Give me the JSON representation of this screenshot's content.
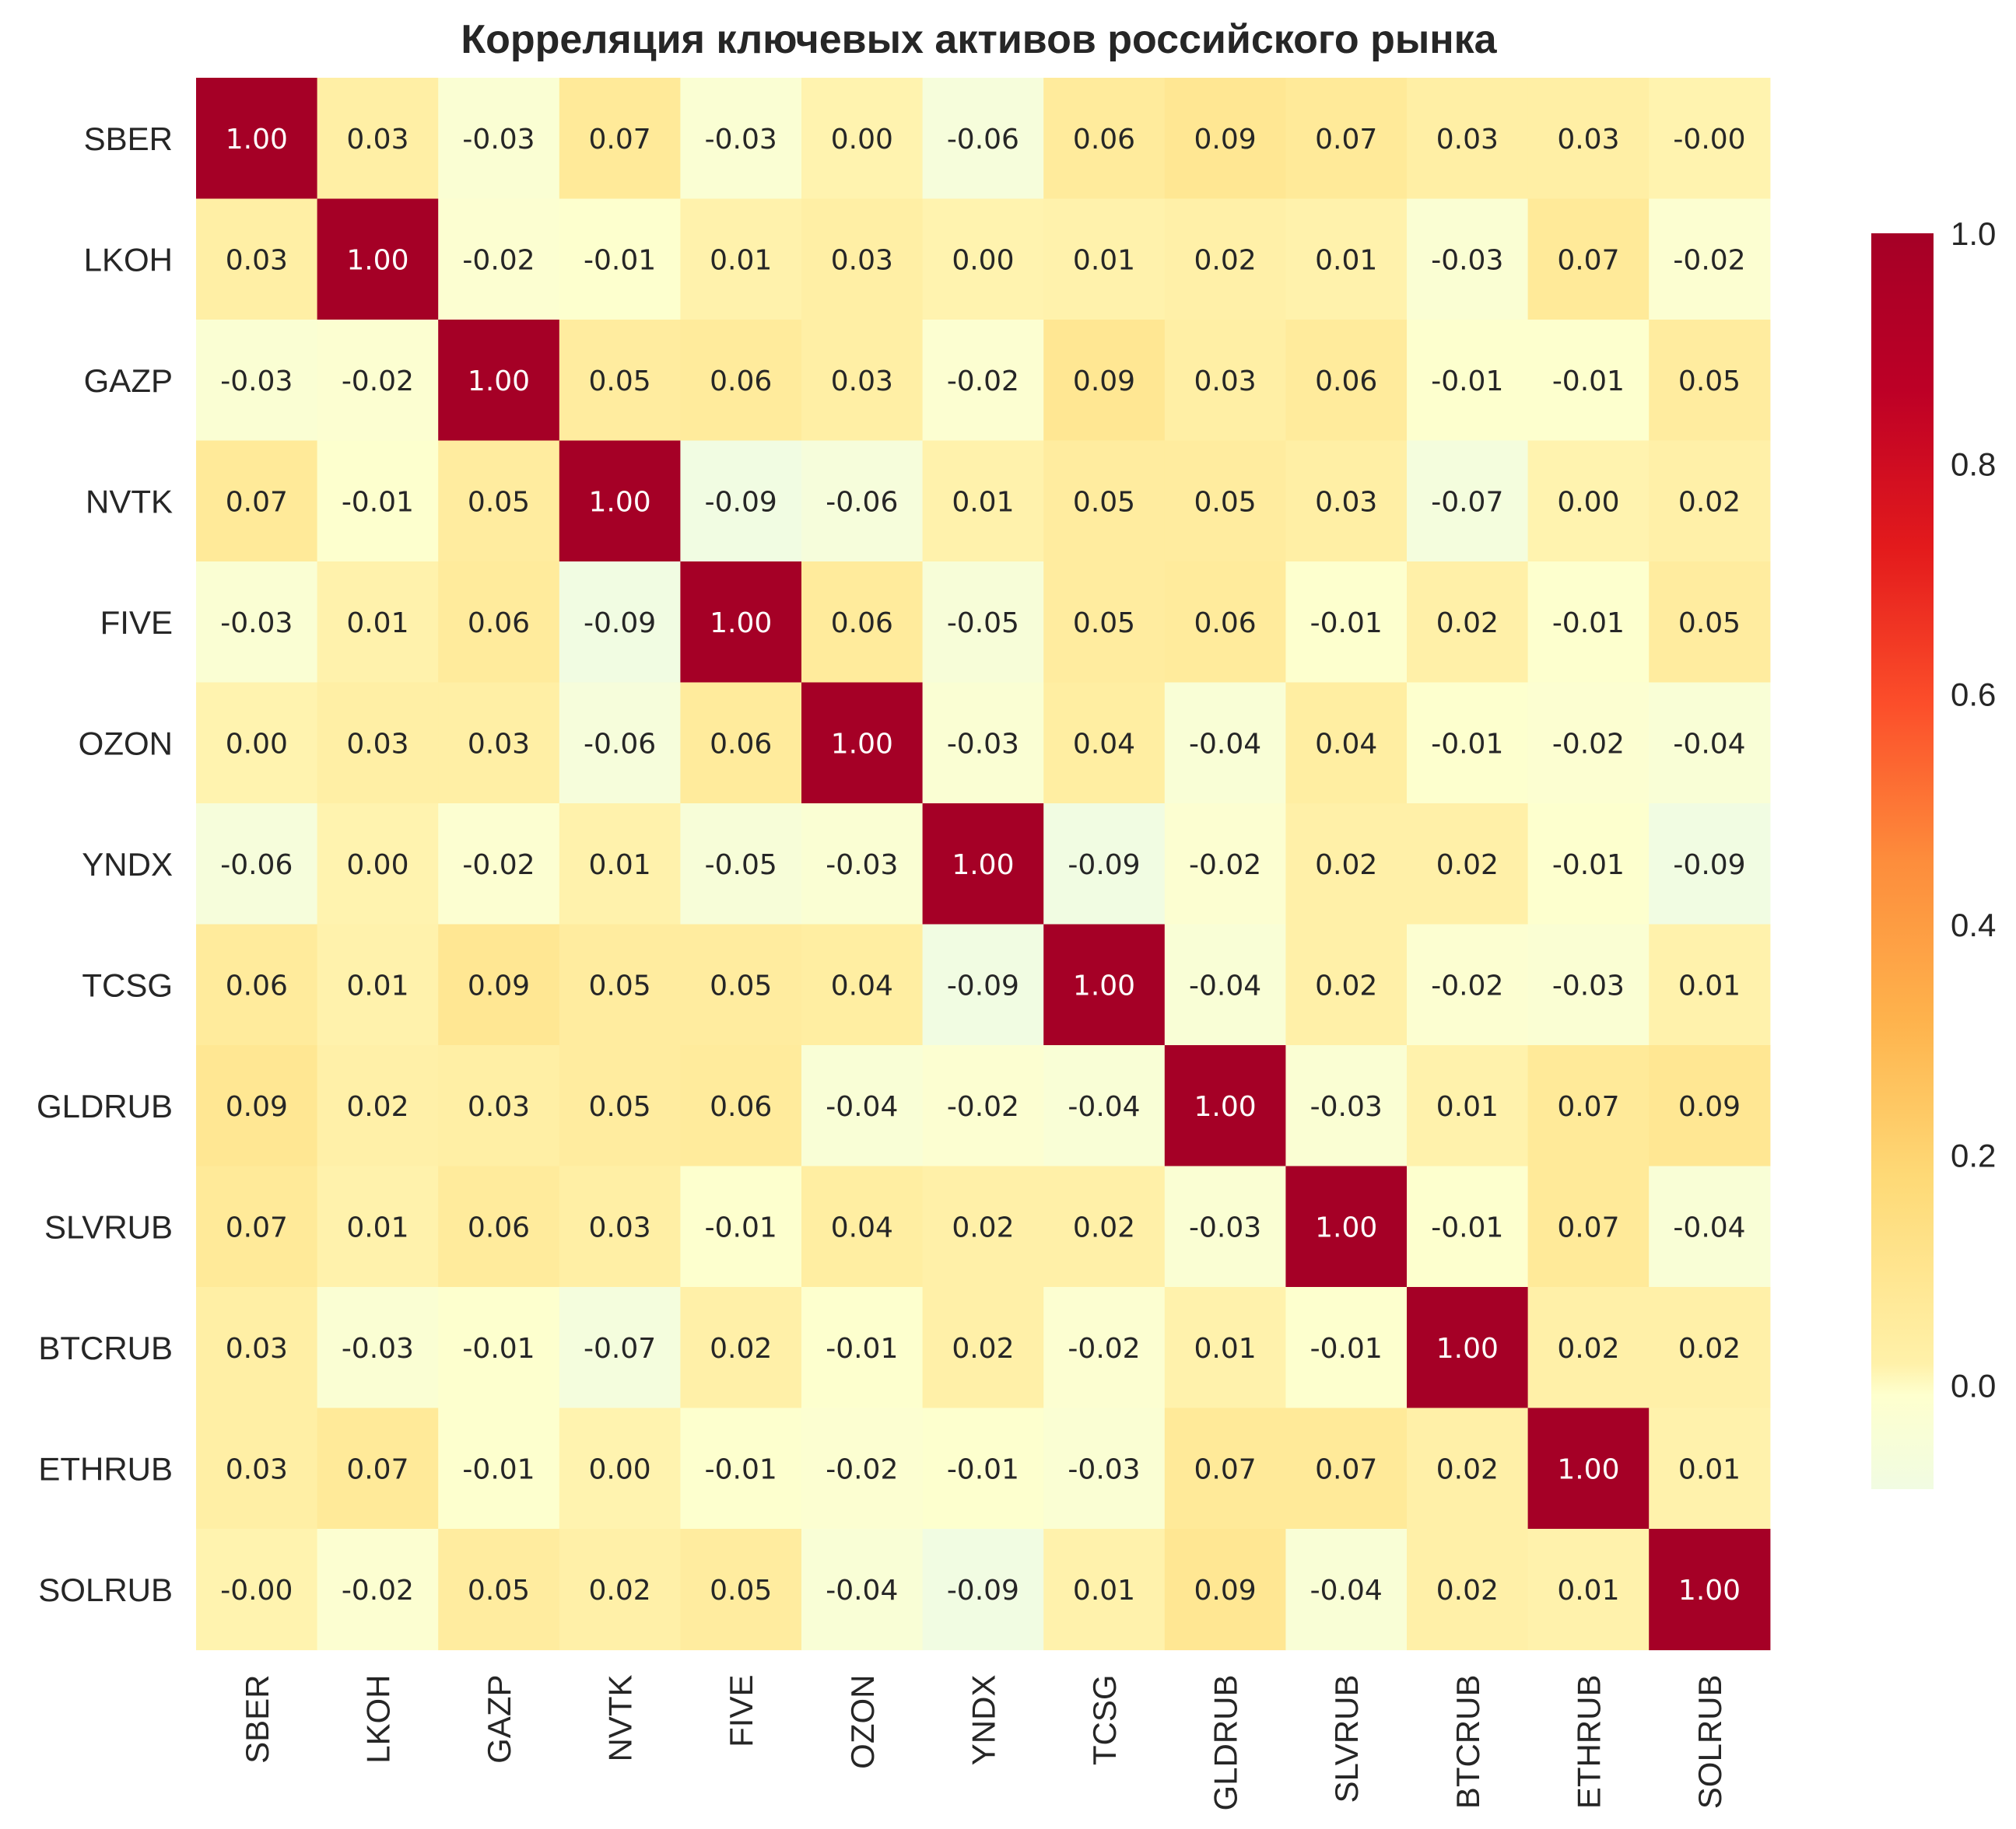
{
  "chart_data": {
    "type": "heatmap",
    "title": "Корреляция ключевых активов российского рынка",
    "row_labels": [
      "SBER",
      "LKOH",
      "GAZP",
      "NVTK",
      "FIVE",
      "OZON",
      "YNDX",
      "TCSG",
      "GLDRUB",
      "SLVRUB",
      "BTCRUB",
      "ETHRUB",
      "SOLRUB"
    ],
    "col_labels": [
      "SBER",
      "LKOH",
      "GAZP",
      "NVTK",
      "FIVE",
      "OZON",
      "YNDX",
      "TCSG",
      "GLDRUB",
      "SLVRUB",
      "BTCRUB",
      "ETHRUB",
      "SOLRUB"
    ],
    "values": [
      [
        1.0,
        0.03,
        -0.03,
        0.07,
        -0.03,
        0.0,
        -0.06,
        0.06,
        0.09,
        0.07,
        0.03,
        0.03,
        -0.0
      ],
      [
        0.03,
        1.0,
        -0.02,
        -0.01,
        0.01,
        0.03,
        0.0,
        0.01,
        0.02,
        0.01,
        -0.03,
        0.07,
        -0.02
      ],
      [
        -0.03,
        -0.02,
        1.0,
        0.05,
        0.06,
        0.03,
        -0.02,
        0.09,
        0.03,
        0.06,
        -0.01,
        -0.01,
        0.05
      ],
      [
        0.07,
        -0.01,
        0.05,
        1.0,
        -0.09,
        -0.06,
        0.01,
        0.05,
        0.05,
        0.03,
        -0.07,
        0.0,
        0.02
      ],
      [
        -0.03,
        0.01,
        0.06,
        -0.09,
        1.0,
        0.06,
        -0.05,
        0.05,
        0.06,
        -0.01,
        0.02,
        -0.01,
        0.05
      ],
      [
        0.0,
        0.03,
        0.03,
        -0.06,
        0.06,
        1.0,
        -0.03,
        0.04,
        -0.04,
        0.04,
        -0.01,
        -0.02,
        -0.04
      ],
      [
        -0.06,
        0.0,
        -0.02,
        0.01,
        -0.05,
        -0.03,
        1.0,
        -0.09,
        -0.02,
        0.02,
        0.02,
        -0.01,
        -0.09
      ],
      [
        0.06,
        0.01,
        0.09,
        0.05,
        0.05,
        0.04,
        -0.09,
        1.0,
        -0.04,
        0.02,
        -0.02,
        -0.03,
        0.01
      ],
      [
        0.09,
        0.02,
        0.03,
        0.05,
        0.06,
        -0.04,
        -0.02,
        -0.04,
        1.0,
        -0.03,
        0.01,
        0.07,
        0.09
      ],
      [
        0.07,
        0.01,
        0.06,
        0.03,
        -0.01,
        0.04,
        0.02,
        0.02,
        -0.03,
        1.0,
        -0.01,
        0.07,
        -0.04
      ],
      [
        0.03,
        -0.03,
        -0.01,
        -0.07,
        0.02,
        -0.01,
        0.02,
        -0.02,
        0.01,
        -0.01,
        1.0,
        0.02,
        0.02
      ],
      [
        0.03,
        0.07,
        -0.01,
        0.0,
        -0.01,
        -0.02,
        -0.01,
        -0.03,
        0.07,
        0.07,
        0.02,
        1.0,
        0.01
      ],
      [
        -0.0,
        -0.02,
        0.05,
        0.02,
        0.05,
        -0.04,
        -0.09,
        0.01,
        0.09,
        -0.04,
        0.02,
        0.01,
        1.0
      ]
    ],
    "value_format": "0.00",
    "colormap": "YlOrRd",
    "color_range": [
      -0.09,
      1.0
    ],
    "colorbar": {
      "ticks": [
        0.0,
        0.2,
        0.4,
        0.6,
        0.8,
        1.0
      ],
      "tick_labels": [
        "0.0",
        "0.2",
        "0.4",
        "0.6",
        "0.8",
        "1.0"
      ],
      "placement": "right"
    },
    "colors": [
      "#ffffcc",
      "#ffeda0",
      "#fed976",
      "#feb24c",
      "#fd8d3c",
      "#fc4e2a",
      "#e31a1c",
      "#bd0026",
      "#a50026"
    ],
    "grid": false
  }
}
